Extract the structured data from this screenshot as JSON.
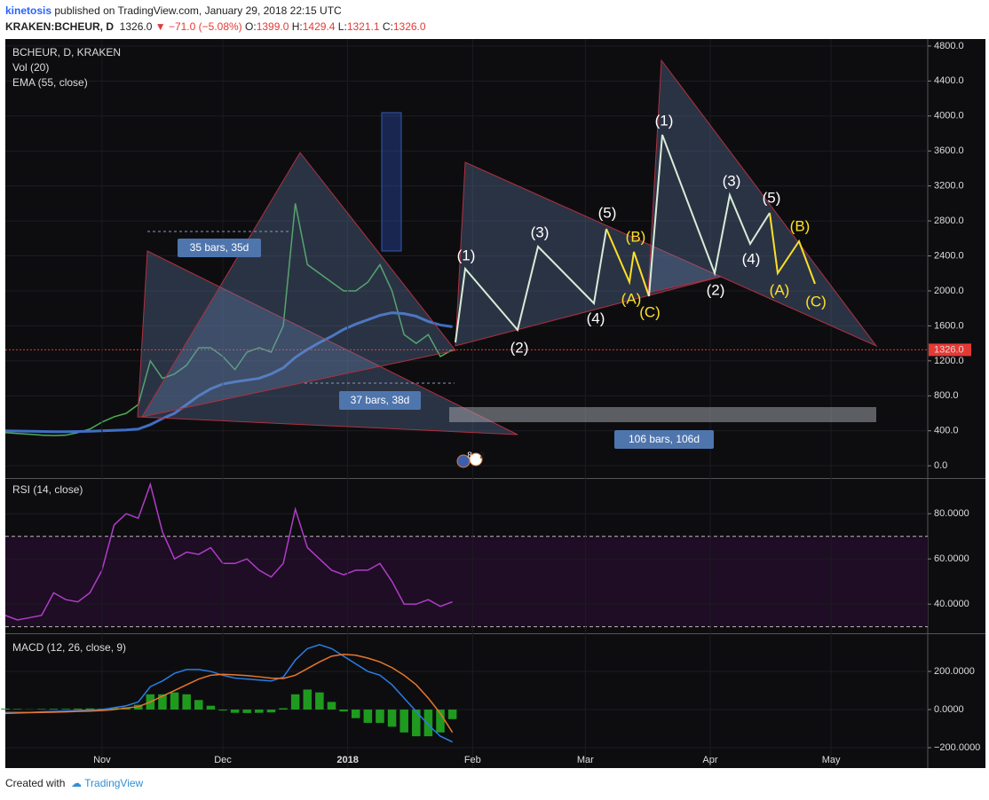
{
  "header": {
    "author": "kinetosis",
    "published": "published on TradingView.com, January 29, 2018 22:15 UTC",
    "symbol": "KRAKEN:BCHEUR, D",
    "price": "1326.0",
    "change": "−71.0 (−5.08%)",
    "ohlc": [
      [
        "O:",
        "1399.0"
      ],
      [
        "H:",
        "1429.4"
      ],
      [
        "L:",
        "1321.1"
      ],
      [
        "C:",
        "1326.0"
      ]
    ]
  },
  "chart_data": [
    {
      "type": "line",
      "volume_label": "Vol (20)",
      "x": [
        0,
        3,
        6,
        9,
        12,
        15,
        18,
        21,
        24,
        27,
        30,
        33,
        36,
        39,
        42,
        45,
        48,
        51,
        54,
        57,
        60,
        63,
        66,
        69,
        72,
        75,
        78,
        81,
        84,
        87,
        90,
        93,
        96,
        99,
        102,
        105,
        108,
        111
      ],
      "series": [
        {
          "name": "BCHEUR, D, KRAKEN",
          "color": "#4caf50",
          "values": [
            380,
            370,
            360,
            350,
            345,
            350,
            380,
            420,
            500,
            560,
            600,
            700,
            1200,
            1000,
            1050,
            1150,
            1350,
            1350,
            1250,
            1100,
            1300,
            1350,
            1300,
            1600,
            3000,
            2300,
            2200,
            2100,
            2000,
            2000,
            2100,
            2300,
            2000,
            1500,
            1400,
            1500,
            1250,
            1326
          ]
        },
        {
          "name": "EMA (55, close)",
          "color": "#3f6fc4",
          "values": [
            400,
            398,
            395,
            392,
            390,
            390,
            392,
            395,
            400,
            405,
            410,
            420,
            470,
            540,
            600,
            700,
            800,
            880,
            935,
            960,
            980,
            1000,
            1050,
            1120,
            1240,
            1330,
            1410,
            1480,
            1560,
            1620,
            1670,
            1720,
            1750,
            1740,
            1710,
            1650,
            1610,
            1590
          ]
        }
      ],
      "xlim": [
        0,
        229
      ],
      "ylim": [
        -130,
        4880
      ],
      "yticks": [
        {
          "value": 0,
          "label": "0.0"
        },
        {
          "value": 400,
          "label": "400.0"
        },
        {
          "value": 800,
          "label": "800.0"
        },
        {
          "value": 1200,
          "label": "1200.0"
        },
        {
          "value": 1600,
          "label": "1600.0"
        },
        {
          "value": 2000,
          "label": "2000.0"
        },
        {
          "value": 2400,
          "label": "2400.0"
        },
        {
          "value": 2800,
          "label": "2800.0"
        },
        {
          "value": 3200,
          "label": "3200.0"
        },
        {
          "value": 3600,
          "label": "3600.0"
        },
        {
          "value": 4000,
          "label": "4000.0"
        },
        {
          "value": 4400,
          "label": "4400.0"
        },
        {
          "value": 4800,
          "label": "4800.0"
        }
      ],
      "last_price": {
        "value": 1326,
        "label": "1326.0"
      },
      "last_price_color": "#e53935"
    },
    {
      "type": "line",
      "x": [
        0,
        3,
        6,
        9,
        12,
        15,
        18,
        21,
        24,
        27,
        30,
        33,
        36,
        39,
        42,
        45,
        48,
        51,
        54,
        57,
        60,
        63,
        66,
        69,
        72,
        75,
        78,
        81,
        84,
        87,
        90,
        93,
        96,
        99,
        102,
        105,
        108,
        111
      ],
      "series": [
        {
          "name": "RSI (14, close)",
          "color": "#b03cc8",
          "values": [
            35,
            33,
            34,
            35,
            45,
            42,
            41,
            45,
            55,
            75,
            80,
            78,
            93,
            72,
            60,
            63,
            62,
            65,
            58,
            58,
            60,
            55,
            52,
            58,
            82,
            65,
            60,
            55,
            53,
            55,
            55,
            58,
            50,
            40,
            40,
            42,
            39,
            41
          ]
        }
      ],
      "xlim": [
        0,
        229
      ],
      "ylim": [
        27.5,
        95
      ],
      "yticks": [
        {
          "value": 40,
          "label": "40.0000"
        },
        {
          "value": 60,
          "label": "60.0000"
        },
        {
          "value": 80,
          "label": "80.0000"
        }
      ],
      "bands": [
        30,
        70
      ],
      "band_color": "#1e0d24"
    },
    {
      "type": "line",
      "title": "MACD (12, 26, close, 9)",
      "x": [
        0,
        3,
        6,
        9,
        12,
        15,
        18,
        21,
        24,
        27,
        30,
        33,
        36,
        39,
        42,
        45,
        48,
        51,
        54,
        57,
        60,
        63,
        66,
        69,
        72,
        75,
        78,
        81,
        84,
        87,
        90,
        93,
        96,
        99,
        102,
        105,
        108,
        111
      ],
      "series": [
        {
          "type": "bar",
          "color": "#1f9a1f",
          "values": [
            5,
            3,
            1,
            3,
            4,
            4,
            5,
            6,
            5,
            10,
            12,
            25,
            80,
            80,
            90,
            80,
            50,
            20,
            -5,
            -17,
            -18,
            -17,
            -15,
            7,
            80,
            105,
            90,
            40,
            -10,
            -45,
            -70,
            -70,
            -90,
            -120,
            -140,
            -140,
            -120,
            -50
          ]
        },
        {
          "color": "#2a7de1",
          "values": [
            -15,
            -15,
            -15,
            -12,
            -10,
            -8,
            -5,
            -2,
            0,
            10,
            20,
            40,
            120,
            150,
            190,
            210,
            210,
            200,
            180,
            165,
            160,
            155,
            150,
            170,
            260,
            320,
            340,
            320,
            280,
            240,
            200,
            180,
            130,
            60,
            -10,
            -80,
            -140,
            -170
          ]
        },
        {
          "color": "#e8762b",
          "values": [
            -20,
            -18,
            -16,
            -15,
            -14,
            -12,
            -10,
            -8,
            -5,
            0,
            8,
            15,
            40,
            70,
            100,
            130,
            160,
            180,
            185,
            182,
            178,
            172,
            165,
            163,
            180,
            215,
            250,
            280,
            290,
            285,
            270,
            250,
            220,
            180,
            130,
            60,
            -20,
            -120
          ]
        }
      ],
      "xlim": [
        0,
        229
      ],
      "ylim": [
        -307,
        391
      ],
      "yticks": [
        {
          "value": -200,
          "label": "−200.0000"
        },
        {
          "value": 0,
          "label": "0.0000"
        },
        {
          "value": 200,
          "label": "200.0000"
        }
      ],
      "xticks": [
        {
          "value": 24,
          "label": "Nov"
        },
        {
          "value": 54,
          "label": "Dec"
        },
        {
          "value": 85,
          "label": "2018"
        },
        {
          "value": 116,
          "label": "Feb"
        },
        {
          "value": 144,
          "label": "Mar"
        },
        {
          "value": 175,
          "label": "Apr"
        },
        {
          "value": 205,
          "label": "May"
        }
      ]
    }
  ],
  "annotations": {
    "measures": [
      "35 bars, 35d",
      "37 bars, 38d",
      "106 bars, 106d"
    ],
    "waves": [
      "(1)",
      "(2)",
      "(3)",
      "(4)",
      "(5)",
      "(A)",
      "(B)",
      "(C)",
      "(1)",
      "(2)",
      "(3)",
      "(4)",
      "(5)",
      "(A)",
      "(B)",
      "(C)"
    ],
    "events": [
      "8",
      "2"
    ]
  },
  "footer": {
    "created": "Created with",
    "brand": "TradingView"
  }
}
